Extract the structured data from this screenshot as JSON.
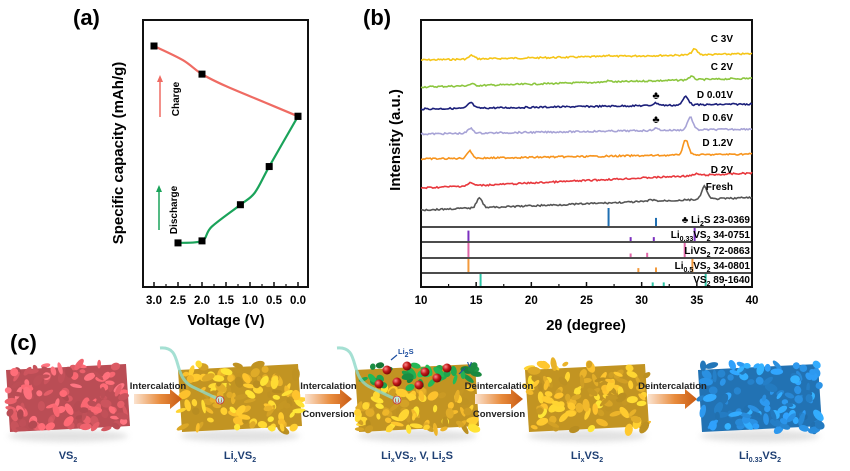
{
  "panels": {
    "a": "(a)",
    "b": "(b)",
    "c": "(c)"
  },
  "chart_data": [
    {
      "id": "a",
      "type": "line",
      "title": "",
      "xlabel": "Voltage (V)",
      "ylabel": "Specific capacity (mAh/g)",
      "x_reversed": true,
      "xlim": [
        3.0,
        0.0
      ],
      "ylim": [
        0,
        1
      ],
      "y_ticks_shown": false,
      "xticks": [
        "3.0",
        "2.5",
        "2.0",
        "1.5",
        "1.0",
        "0.5",
        "0.0"
      ],
      "xtick_values": [
        3.0,
        2.5,
        2.0,
        1.5,
        1.0,
        0.5,
        0.0
      ],
      "series": [
        {
          "name": "Discharge",
          "color": "#1aa35a",
          "points": [
            [
              2.5,
              0.12
            ],
            [
              2.0,
              0.13
            ],
            [
              1.8,
              0.2
            ],
            [
              1.2,
              0.31
            ],
            [
              0.9,
              0.37
            ],
            [
              0.6,
              0.5
            ],
            [
              0.0,
              0.75
            ]
          ],
          "markers": [
            [
              2.5,
              0.12
            ],
            [
              2.0,
              0.13
            ],
            [
              1.2,
              0.31
            ],
            [
              0.6,
              0.5
            ],
            [
              0.0,
              0.75
            ]
          ]
        },
        {
          "name": "Charge",
          "color": "#ef6b63",
          "points": [
            [
              0.0,
              0.75
            ],
            [
              0.7,
              0.82
            ],
            [
              1.5,
              0.9
            ],
            [
              2.0,
              0.96
            ],
            [
              2.4,
              1.03
            ],
            [
              3.0,
              1.1
            ]
          ],
          "markers": [
            [
              0.0,
              0.75
            ],
            [
              2.0,
              0.96
            ],
            [
              3.0,
              1.1
            ]
          ]
        }
      ],
      "annotations": [
        {
          "text": "Charge",
          "arrow_color": "#ef6b63"
        },
        {
          "text": "Discharge",
          "arrow_color": "#1aa35a"
        }
      ]
    },
    {
      "id": "b",
      "type": "line",
      "title": "",
      "xlabel": "2θ (degree)",
      "ylabel": "Intensity (a.u.)",
      "xlim": [
        10,
        40
      ],
      "xticks": [
        "10",
        "15",
        "20",
        "25",
        "30",
        "35",
        "40"
      ],
      "xtick_values": [
        10,
        15,
        20,
        25,
        30,
        35,
        40
      ],
      "y_ticks_shown": false,
      "series": [
        {
          "name": "C 3V",
          "color": "#f5c518",
          "baseline": 0.0,
          "slope": 0.25,
          "peaks": [
            [
              14.6,
              0.45
            ],
            [
              27.0,
              0.15
            ],
            [
              34.8,
              0.7
            ]
          ]
        },
        {
          "name": "C 2V",
          "color": "#8cc63f",
          "baseline": 0.0,
          "slope": 0.35,
          "peaks": [
            [
              14.6,
              0.2
            ],
            [
              27.0,
              0.15
            ],
            [
              34.5,
              0.4
            ]
          ]
        },
        {
          "name": "D 0.01V",
          "color": "#1b1f7a",
          "baseline": 0.0,
          "slope": 0.2,
          "peaks": [
            [
              14.5,
              0.7
            ],
            [
              31.3,
              0.3
            ],
            [
              34.0,
              1.1
            ]
          ]
        },
        {
          "name": "D 0.6V",
          "color": "#a7a3d6",
          "baseline": 0.0,
          "slope": 0.2,
          "peaks": [
            [
              14.5,
              0.6
            ],
            [
              31.3,
              0.25
            ],
            [
              34.4,
              1.6
            ]
          ]
        },
        {
          "name": "D 1.2V",
          "color": "#f7941d",
          "baseline": 0.0,
          "slope": 0.2,
          "peaks": [
            [
              14.4,
              0.9
            ],
            [
              34.0,
              1.9
            ]
          ]
        },
        {
          "name": "D 2V",
          "color": "#e8383d",
          "baseline": 0.0,
          "slope": 0.6,
          "peaks": [
            [
              14.5,
              0.35
            ],
            [
              35.0,
              0.2
            ]
          ]
        },
        {
          "name": "Fresh",
          "color": "#555555",
          "baseline": 0.0,
          "slope": 0.5,
          "peaks": [
            [
              15.3,
              1.3
            ],
            [
              30.9,
              0.2
            ],
            [
              35.7,
              1.6
            ]
          ]
        }
      ],
      "markers": [
        {
          "symbol": "♣",
          "series": "D 0.01V",
          "x": 31.3
        },
        {
          "symbol": "♣",
          "series": "D 0.6V",
          "x": 31.3
        }
      ],
      "reference_patterns": [
        {
          "label": "♣ Li2S 23-0369",
          "label_parts": [
            "♣ Li",
            "2",
            "S 23-0369"
          ],
          "color": "#1f6fb2",
          "lines": [
            [
              27.0,
              1.0
            ],
            [
              31.3,
              0.45
            ]
          ]
        },
        {
          "label": "Li0.33VS2 34-0751",
          "label_parts": [
            "Li",
            "0.33",
            "VS",
            "2",
            " 34-0751"
          ],
          "color": "#7b2fbf",
          "lines": [
            [
              14.3,
              0.8
            ],
            [
              29.0,
              0.3
            ],
            [
              31.1,
              0.3
            ],
            [
              34.8,
              1.0
            ]
          ]
        },
        {
          "label": "LiVS2 72-0863",
          "label_parts": [
            "LiVS",
            "2",
            " 72-0863"
          ],
          "color": "#e066a8",
          "lines": [
            [
              14.3,
              1.0
            ],
            [
              29.0,
              0.25
            ],
            [
              30.5,
              0.3
            ],
            [
              33.9,
              1.0
            ]
          ]
        },
        {
          "label": "Li0.5VS2 34-0801",
          "label_parts": [
            "Li",
            "0.5",
            "VS",
            "2",
            " 34-0801"
          ],
          "color": "#f39a3c",
          "lines": [
            [
              14.3,
              1.0
            ],
            [
              29.7,
              0.3
            ],
            [
              31.3,
              0.35
            ],
            [
              34.6,
              1.0
            ]
          ]
        },
        {
          "label": "VS2 89-1640",
          "label_parts": [
            "VS",
            "2",
            " 89-1640"
          ],
          "color": "#2ec4a6",
          "lines": [
            [
              15.4,
              1.0
            ],
            [
              31.0,
              0.3
            ],
            [
              32.0,
              0.3
            ],
            [
              35.8,
              1.0
            ]
          ]
        }
      ]
    }
  ],
  "scheme": {
    "stages": [
      {
        "name": "VS2",
        "label_parts": [
          "VS",
          "2"
        ],
        "color": "#e8606a"
      },
      {
        "name": "LixVS2",
        "label_parts": [
          "Li",
          "x",
          "VS",
          "2"
        ],
        "color": "#f2b92b",
        "tag": "Li"
      },
      {
        "name": "LixVS2, V, Li2S",
        "label_parts": [
          "Li",
          "x",
          "VS",
          "2",
          ", V, Li",
          "2",
          "S"
        ],
        "color": "#f2b92b",
        "top_color": "#1e9e4a",
        "tag": "Li",
        "callouts": [
          "Li2S",
          "V"
        ]
      },
      {
        "name": "LixVS2",
        "label_parts": [
          "Li",
          "x",
          "VS",
          "2"
        ],
        "color": "#f2b92b"
      },
      {
        "name": "Li0.33VS2",
        "label_parts": [
          "Li",
          "0.33",
          "VS",
          "2"
        ],
        "color": "#2a8fe0"
      }
    ],
    "arrows": [
      {
        "lines": [
          "Intercalation"
        ]
      },
      {
        "lines": [
          "Intercalation",
          "Conversion"
        ]
      },
      {
        "lines": [
          "Deintercalation",
          "Conversion"
        ]
      },
      {
        "lines": [
          "Deintercalation"
        ]
      }
    ],
    "callouts": {
      "li2s": "Li2S",
      "li2s_parts": [
        "Li",
        "2",
        "S"
      ],
      "v": "V",
      "li_tag": "Li"
    }
  }
}
